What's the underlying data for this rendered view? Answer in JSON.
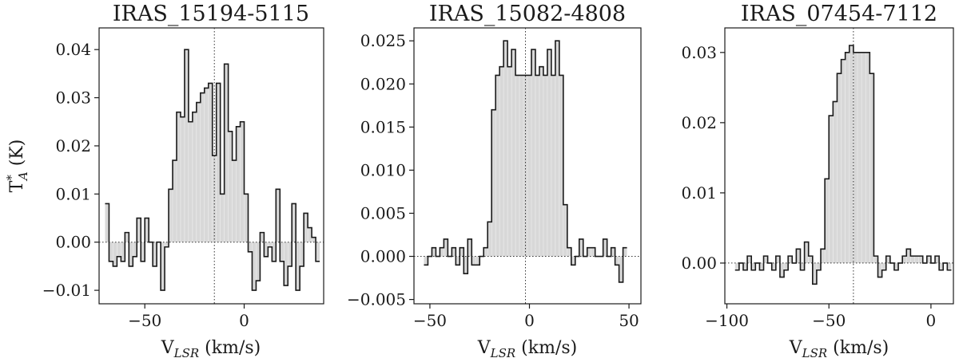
{
  "chart_data": [
    {
      "type": "line",
      "title": "IRAS_15194-5115",
      "xlabel_main": "V",
      "xlabel_sub": "LSR",
      "xlabel_unit": " (km/s)",
      "ylabel_main": "T",
      "ylabel_sup": "*",
      "ylabel_sub": "A",
      "ylabel_unit": " (K)",
      "xlim": [
        -73,
        40
      ],
      "ylim": [
        -0.0128,
        0.0445
      ],
      "xticks": [
        -50,
        0
      ],
      "xtick_labels": [
        "−50",
        "0"
      ],
      "yticks": [
        -0.01,
        0.0,
        0.01,
        0.02,
        0.03,
        0.04
      ],
      "ytick_labels": [
        "−0.01",
        "0.00",
        "0.01",
        "0.02",
        "0.03",
        "0.04"
      ],
      "vsys": -15,
      "x": [
        -69,
        -67,
        -65,
        -63,
        -61,
        -59,
        -57,
        -55,
        -53,
        -51,
        -49,
        -47,
        -45,
        -43,
        -41,
        -39,
        -37,
        -35,
        -33,
        -31,
        -29,
        -27,
        -25,
        -23,
        -21,
        -19,
        -17,
        -15,
        -13,
        -11,
        -9,
        -7,
        -5,
        -3,
        -1,
        1,
        3,
        5,
        7,
        9,
        11,
        13,
        15,
        17,
        19,
        21,
        23,
        25,
        27,
        29,
        31,
        33,
        35,
        37
      ],
      "y": [
        0.008,
        -0.004,
        -0.005,
        -0.003,
        -0.004,
        0.002,
        -0.005,
        -0.003,
        0.005,
        -0.004,
        0.005,
        0.0,
        -0.005,
        0.0,
        -0.01,
        -0.001,
        0.011,
        0.017,
        0.027,
        0.026,
        0.04,
        0.025,
        0.027,
        0.029,
        0.031,
        0.032,
        0.033,
        0.018,
        0.033,
        0.01,
        0.037,
        0.023,
        0.017,
        0.024,
        0.025,
        0.01,
        -0.002,
        -0.01,
        -0.008,
        0.002,
        -0.003,
        -0.001,
        -0.004,
        0.011,
        -0.004,
        -0.009,
        -0.005,
        0.008,
        -0.01,
        -0.005,
        0.006,
        0.003,
        0.001,
        -0.004
      ],
      "bin_width": 2
    },
    {
      "type": "line",
      "title": "IRAS_15082-4808",
      "xlabel_main": "V",
      "xlabel_sub": "LSR",
      "xlabel_unit": " (km/s)",
      "xlim": [
        -58,
        56
      ],
      "ylim": [
        -0.0055,
        0.0265
      ],
      "xticks": [
        -50,
        0,
        50
      ],
      "xtick_labels": [
        "−50",
        "0",
        "50"
      ],
      "yticks": [
        -0.005,
        0.0,
        0.005,
        0.01,
        0.015,
        0.02,
        0.025
      ],
      "ytick_labels": [
        "−0.005",
        "0.000",
        "0.005",
        "0.010",
        "0.015",
        "0.020",
        "0.025"
      ],
      "vsys": -2,
      "x": [
        -52,
        -50,
        -48,
        -46,
        -44,
        -42,
        -40,
        -38,
        -36,
        -34,
        -32,
        -30,
        -28,
        -26,
        -24,
        -22,
        -20,
        -18,
        -16,
        -14,
        -12,
        -10,
        -8,
        -6,
        -4,
        -2,
        0,
        2,
        4,
        6,
        8,
        10,
        12,
        14,
        16,
        18,
        20,
        22,
        24,
        26,
        28,
        30,
        32,
        34,
        36,
        38,
        40,
        42,
        44,
        46,
        48
      ],
      "y": [
        -0.001,
        0.0,
        0.001,
        0.0,
        0.001,
        0.002,
        0.0,
        0.001,
        -0.001,
        0.001,
        -0.002,
        0.002,
        -0.001,
        -0.001,
        0.0,
        0.001,
        0.004,
        0.017,
        0.021,
        0.022,
        0.025,
        0.022,
        0.024,
        0.021,
        0.021,
        0.021,
        0.021,
        0.024,
        0.021,
        0.022,
        0.021,
        0.024,
        0.021,
        0.025,
        0.021,
        0.006,
        0.001,
        -0.001,
        0.0,
        0.002,
        0.0,
        0.001,
        0.001,
        0.0,
        0.0,
        0.002,
        0.0,
        0.001,
        -0.001,
        -0.003,
        0.001
      ],
      "bin_width": 2
    },
    {
      "type": "line",
      "title": "IRAS_07454-7112",
      "xlabel_main": "V",
      "xlabel_sub": "LSR",
      "xlabel_unit": " (km/s)",
      "xlim": [
        -101,
        11
      ],
      "ylim": [
        -0.0058,
        0.0335
      ],
      "xticks": [
        -100,
        -50,
        0
      ],
      "xtick_labels": [
        "−100",
        "−50",
        "0"
      ],
      "yticks": [
        0.0,
        0.01,
        0.02,
        0.03
      ],
      "ytick_labels": [
        "0.00",
        "0.01",
        "0.02",
        "0.03"
      ],
      "vsys": -38,
      "x": [
        -95,
        -93,
        -91,
        -89,
        -87,
        -85,
        -83,
        -81,
        -79,
        -77,
        -75,
        -73,
        -71,
        -69,
        -67,
        -65,
        -63,
        -61,
        -59,
        -57,
        -55,
        -53,
        -51,
        -49,
        -47,
        -45,
        -43,
        -41,
        -39,
        -37,
        -35,
        -33,
        -31,
        -29,
        -27,
        -25,
        -23,
        -21,
        -19,
        -17,
        -15,
        -13,
        -11,
        -9,
        -7,
        -5,
        -3,
        -1,
        1,
        3,
        5,
        7,
        9
      ],
      "y": [
        -0.001,
        0.0,
        -0.001,
        0.001,
        -0.001,
        0.0,
        -0.001,
        0.001,
        0.0,
        -0.001,
        0.001,
        -0.002,
        -0.001,
        0.001,
        0.0,
        0.002,
        -0.001,
        0.003,
        0.001,
        -0.003,
        -0.001,
        0.002,
        0.012,
        0.021,
        0.023,
        0.027,
        0.029,
        0.03,
        0.031,
        0.03,
        0.03,
        0.03,
        0.03,
        0.027,
        0.001,
        -0.002,
        -0.001,
        0.001,
        0.0,
        -0.001,
        0.0,
        0.001,
        0.002,
        0.001,
        0.001,
        0.001,
        0.0,
        0.001,
        0.0,
        0.001,
        -0.001,
        0.0,
        -0.001
      ],
      "bin_width": 2
    }
  ]
}
